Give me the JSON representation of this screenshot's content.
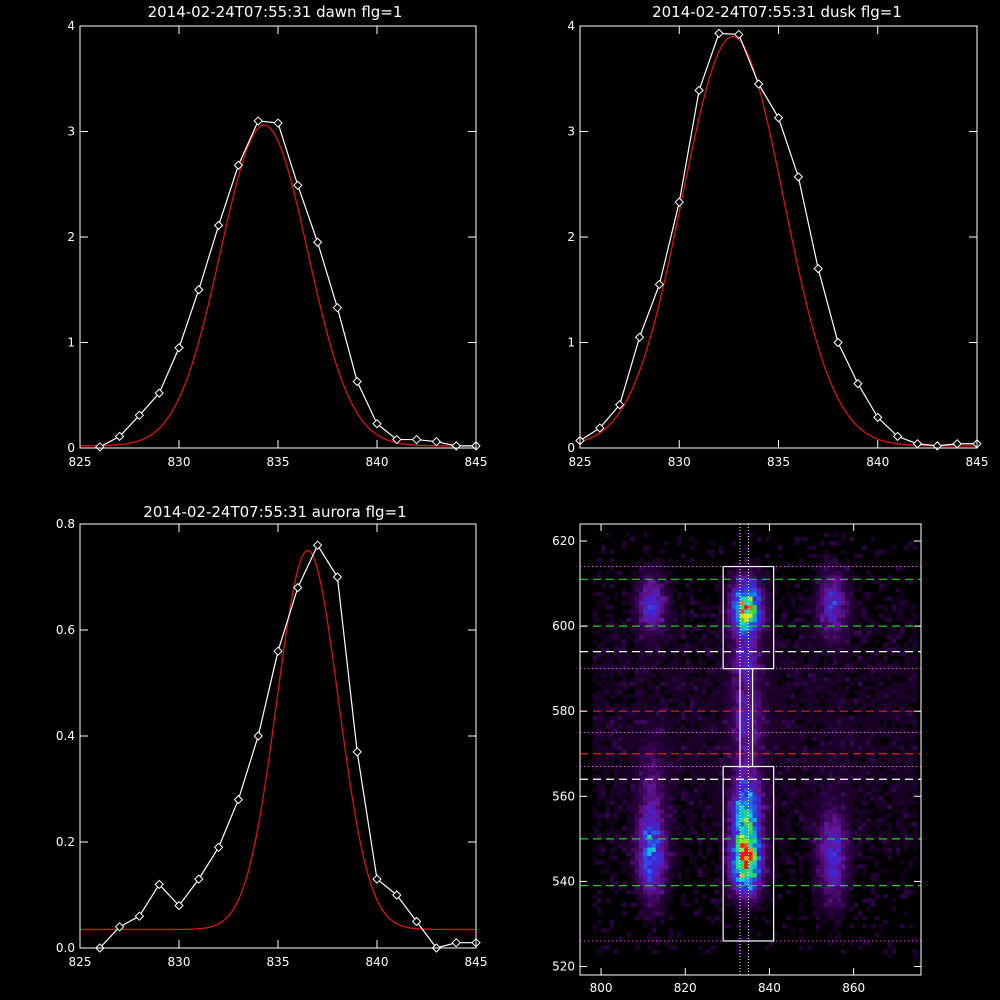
{
  "colors": {
    "background": "#000000",
    "axis": "#ffffff",
    "observed": "#ffffff",
    "fit": "#e01010",
    "green_dash": "#22cc22",
    "red_dash": "#dd2222",
    "white_dash": "#ffffff",
    "magenta_dot": "#ff44ff"
  },
  "chart_data": [
    {
      "type": "line",
      "title": "2014-02-24T07:55:31 dawn flg=1",
      "xlim": [
        825,
        845
      ],
      "ylim": [
        0,
        4
      ],
      "xticks": [
        825,
        830,
        835,
        840,
        845
      ],
      "yticks": [
        0,
        1,
        2,
        3,
        4
      ],
      "grid": false,
      "observed": {
        "marker": "diamond",
        "x": [
          826,
          827,
          828,
          829,
          830,
          831,
          832,
          833,
          834,
          835,
          836,
          837,
          838,
          839,
          840,
          841,
          842,
          843,
          844,
          845
        ],
        "y": [
          0.01,
          0.11,
          0.31,
          0.52,
          0.95,
          1.5,
          2.11,
          2.68,
          3.1,
          3.08,
          2.49,
          1.95,
          1.33,
          0.63,
          0.23,
          0.08,
          0.08,
          0.06,
          0.02,
          0.02
        ]
      },
      "fit": {
        "model": "gaussian",
        "amplitude": 3.04,
        "center": 834.3,
        "sigma": 2.2,
        "offset": 0.02
      }
    },
    {
      "type": "line",
      "title": "2014-02-24T07:55:31 dusk flg=1",
      "xlim": [
        825,
        845
      ],
      "ylim": [
        0,
        4
      ],
      "xticks": [
        825,
        830,
        835,
        840,
        845
      ],
      "yticks": [
        0,
        1,
        2,
        3,
        4
      ],
      "grid": false,
      "observed": {
        "marker": "diamond",
        "x": [
          825,
          826,
          827,
          828,
          829,
          830,
          831,
          832,
          833,
          834,
          835,
          836,
          837,
          838,
          839,
          840,
          841,
          842,
          843,
          844,
          845
        ],
        "y": [
          0.07,
          0.19,
          0.41,
          1.05,
          1.55,
          2.33,
          3.39,
          3.93,
          3.92,
          3.45,
          3.13,
          2.57,
          1.7,
          1.0,
          0.61,
          0.29,
          0.11,
          0.04,
          0.02,
          0.04,
          0.04
        ]
      },
      "fit": {
        "model": "gaussian",
        "amplitude": 3.88,
        "center": 832.7,
        "sigma": 2.55,
        "offset": 0.02
      }
    },
    {
      "type": "line",
      "title": "2014-02-24T07:55:31 aurora flg=1",
      "xlim": [
        825,
        845
      ],
      "ylim": [
        0,
        0.8
      ],
      "xticks": [
        825,
        830,
        835,
        840,
        845
      ],
      "yticks": [
        0.0,
        0.2,
        0.4,
        0.6,
        0.8
      ],
      "grid": false,
      "observed": {
        "marker": "diamond",
        "x": [
          826,
          827,
          828,
          829,
          830,
          831,
          832,
          833,
          834,
          835,
          836,
          837,
          838,
          839,
          840,
          841,
          842,
          843,
          844,
          845
        ],
        "y": [
          0.0,
          0.04,
          0.06,
          0.12,
          0.08,
          0.13,
          0.19,
          0.28,
          0.4,
          0.56,
          0.68,
          0.76,
          0.7,
          0.37,
          0.13,
          0.1,
          0.05,
          0.0,
          0.01,
          0.01
        ]
      },
      "fit": {
        "model": "gaussian",
        "amplitude": 0.715,
        "center": 836.5,
        "sigma": 1.55,
        "offset": 0.035
      }
    },
    {
      "type": "heatmap",
      "title": "",
      "xlim": [
        795,
        876
      ],
      "ylim": [
        518,
        624
      ],
      "xticks": [
        800,
        820,
        840,
        860
      ],
      "yticks": [
        520,
        540,
        560,
        580,
        600,
        620
      ],
      "grid": false,
      "colormap": "rainbow (black-purple-blue-cyan-green-yellow-red)",
      "emission_columns": [
        {
          "x_center": 812,
          "x_width": 3.0
        },
        {
          "x_center": 834.5,
          "x_width": 3.2
        },
        {
          "x_center": 855,
          "x_width": 3.2
        }
      ],
      "brightest_regions": [
        {
          "x": 834,
          "y": 545,
          "level": "red"
        },
        {
          "x": 835,
          "y": 605,
          "level": "yellow"
        },
        {
          "x": 811,
          "y": 545,
          "level": "green"
        }
      ],
      "boxes": [
        {
          "x": [
            829,
            841
          ],
          "y": [
            590,
            614
          ]
        },
        {
          "x": [
            829,
            841
          ],
          "y": [
            526,
            567
          ]
        },
        {
          "x": [
            833,
            836
          ],
          "y": [
            567,
            590
          ]
        }
      ],
      "lines": {
        "green_dashed_y": [
          611,
          600,
          550,
          539
        ],
        "white_dashed_y": [
          594,
          564
        ],
        "red_dashed_y": [
          580,
          570
        ],
        "magenta_dotted_y": [
          614,
          590,
          575,
          567,
          526
        ],
        "white_dotted_x": [
          833,
          835
        ]
      }
    }
  ]
}
